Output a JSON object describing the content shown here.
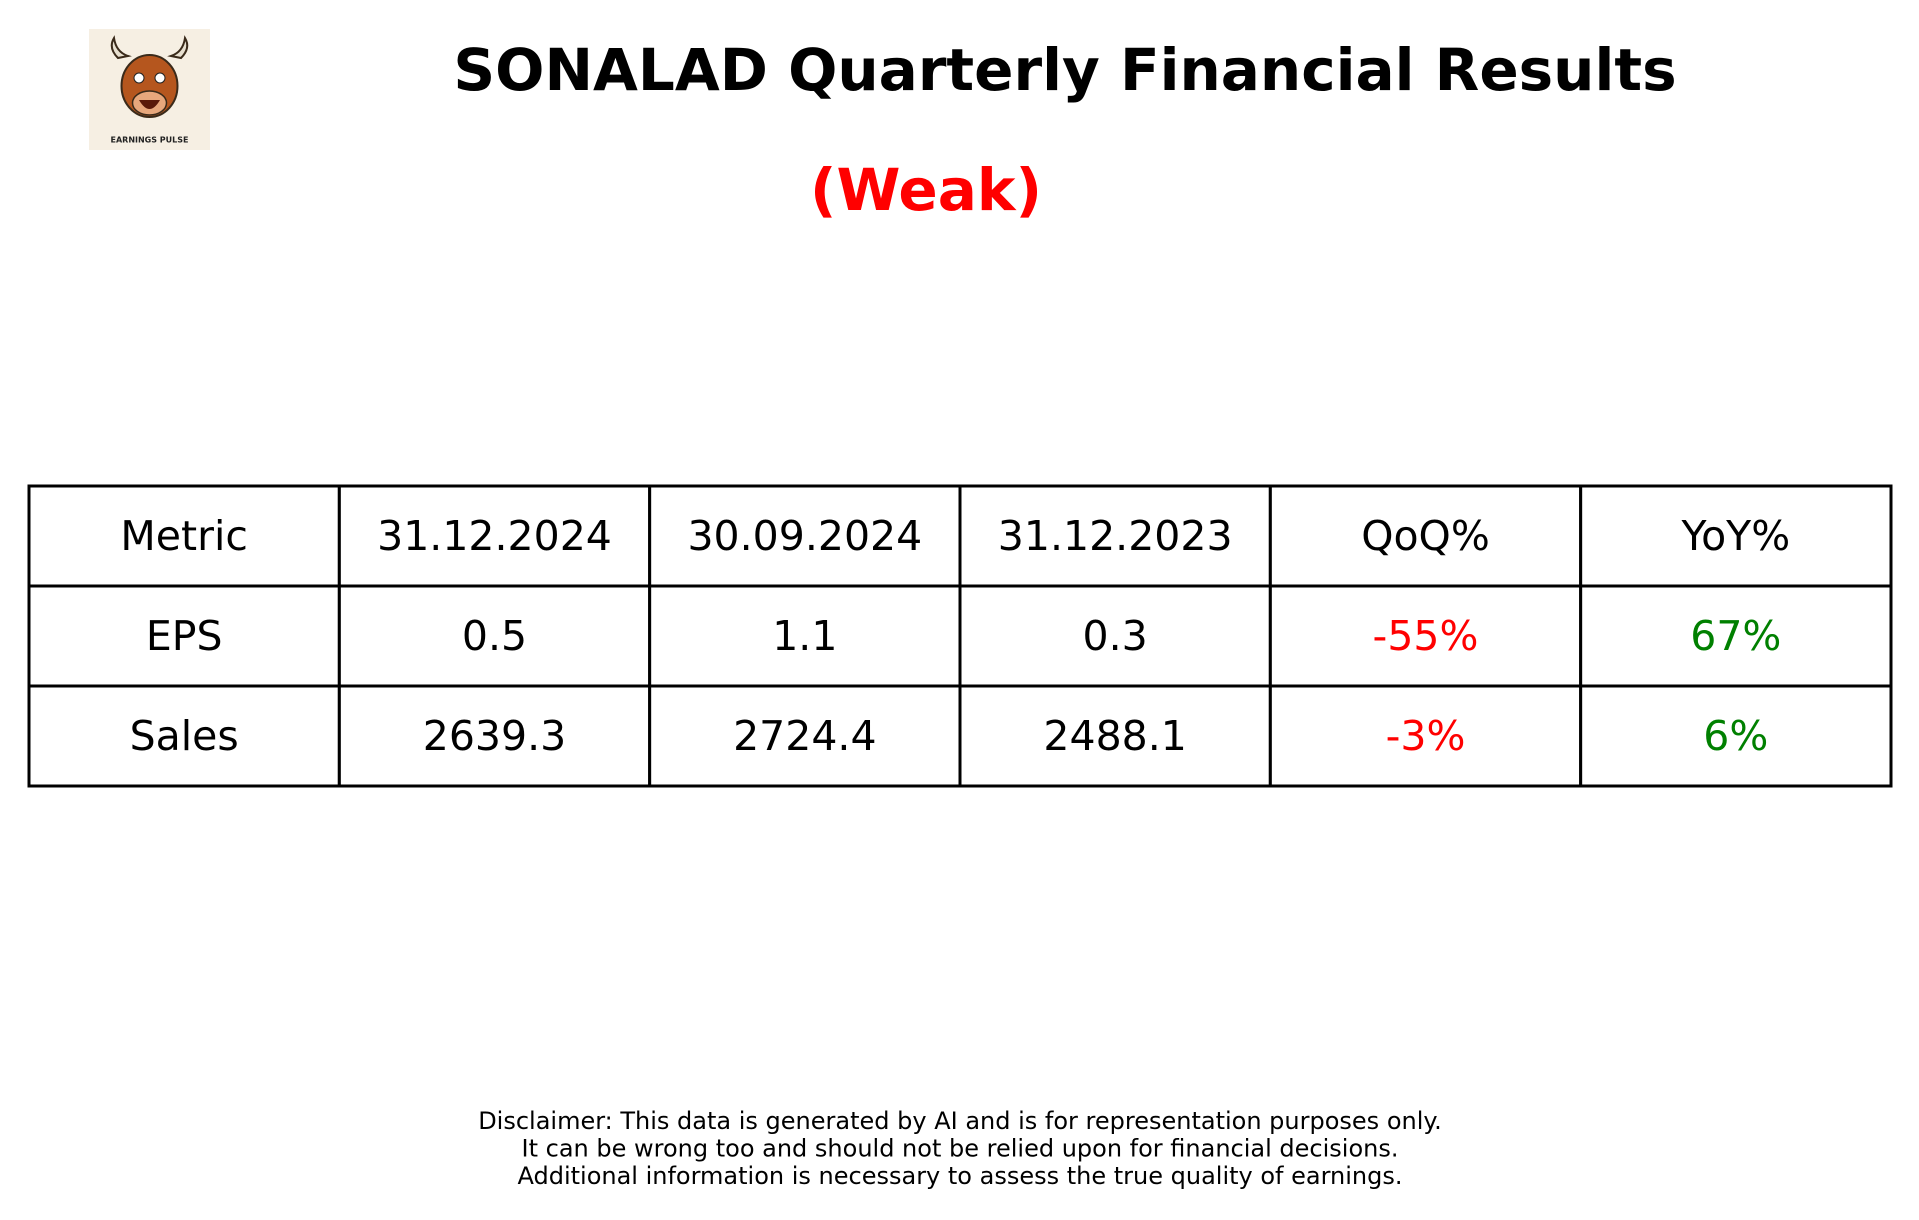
{
  "logo": {
    "text": "EARNINGS PULSE"
  },
  "header": {
    "title": "SONALAD Quarterly Financial Results",
    "rating": "(Weak)"
  },
  "table": {
    "columns": [
      "Metric",
      "31.12.2024",
      "30.09.2024",
      "31.12.2023",
      "QoQ%",
      "YoY%"
    ],
    "rows": [
      [
        "EPS",
        "0.5",
        "1.1",
        "0.3",
        "-55%",
        "67%"
      ],
      [
        "Sales",
        "2639.3",
        "2724.4",
        "2488.1",
        "-3%",
        "6%"
      ]
    ]
  },
  "disclaimer": [
    "Disclaimer: This data is generated by AI and is for representation purposes only.",
    "It can be wrong too and should not be relied upon for financial decisions.",
    "Additional information is necessary to assess the true quality of earnings."
  ]
}
